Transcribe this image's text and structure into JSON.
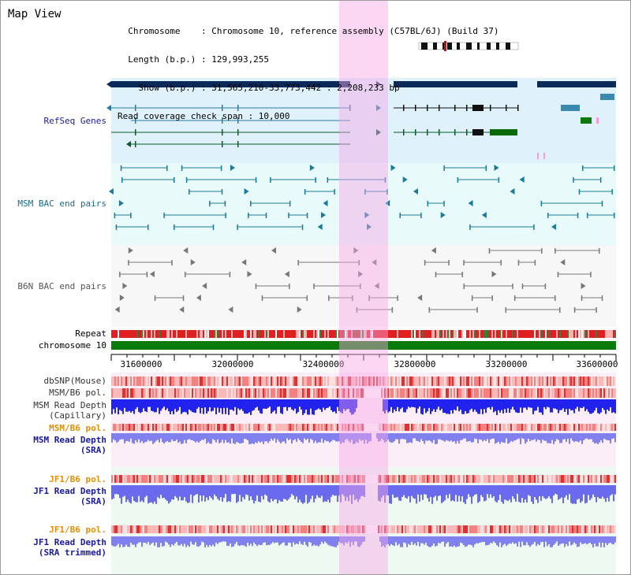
{
  "page_title": "Map View",
  "info_lines": [
    "  Chromosome    : Chromosome 10, reference assembly (C57BL/6J) (Build 37)",
    "  Length (b.p.) : 129,993,255",
    "    Show (b.p.) : 31,565,210-33,773,442 : 2,208,233 bp",
    "Read coverage check span : 10,000"
  ],
  "track_labels": {
    "refseq": "RefSeq Genes",
    "msm_bac": "MSM BAC end pairs",
    "b6n_bac": "B6N BAC end pairs",
    "repeat": "Repeat",
    "chromosome": "chromosome 10",
    "dbsnp": "dbSNP(Mouse)",
    "msm_pol": "MSM/B6 pol.",
    "msm_depth_cap_1": "MSM Read Depth",
    "msm_depth_cap_2": "(Capillary)",
    "msm_pol_sra": "MSM/B6 pol.",
    "msm_depth_sra_1": "MSM Read Depth",
    "msm_depth_sra_2": "(SRA)",
    "jf1_pol": "JF1/B6 pol.",
    "jf1_depth_1": "JF1 Read Depth",
    "jf1_depth_2": "(SRA)",
    "jf1_pol_trim": "JF1/B6 pol.",
    "jf1_trim_1": "JF1 Read Depth",
    "jf1_trim_2": "(SRA trimmed)"
  },
  "axis_ticks": [
    "31600000",
    "32000000",
    "32400000",
    "32800000",
    "33200000",
    "33600000"
  ],
  "colors": {
    "refseq_label": "#1a1a9a",
    "bac_label": "#1a6a8a",
    "b6n_label": "#555555",
    "pol_label": "#e0900a",
    "depth_label": "#1a1a9a",
    "highlight": "#f9c8ee",
    "chromosome_bar": "#0a7a0a",
    "gene_dark": "#0a2a5a"
  }
}
